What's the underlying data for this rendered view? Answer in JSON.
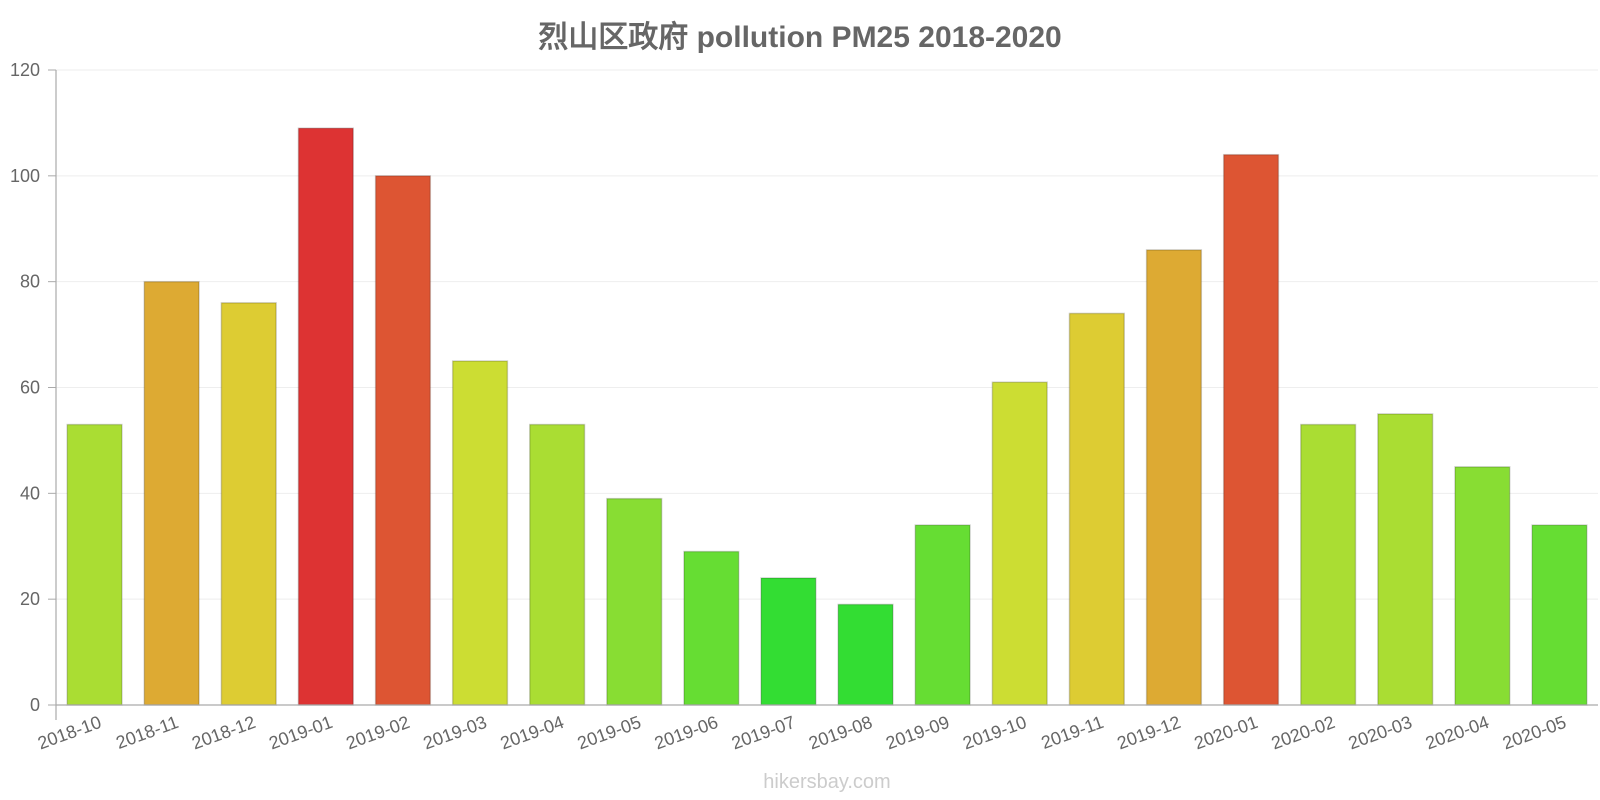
{
  "chart_data": {
    "type": "bar",
    "title": "烈山区政府 pollution PM25 2018-2020",
    "xlabel": "",
    "ylabel": "",
    "ylim": [
      0,
      120
    ],
    "yticks": [
      0,
      20,
      40,
      60,
      80,
      100,
      120
    ],
    "grid": true,
    "categories": [
      "2018-10",
      "2018-11",
      "2018-12",
      "2019-01",
      "2019-02",
      "2019-03",
      "2019-04",
      "2019-05",
      "2019-06",
      "2019-07",
      "2019-08",
      "2019-09",
      "2019-10",
      "2019-11",
      "2019-12",
      "2020-01",
      "2020-02",
      "2020-03",
      "2020-04",
      "2020-05"
    ],
    "values": [
      53,
      80,
      76,
      109,
      100,
      65,
      53,
      39,
      29,
      24,
      19,
      34,
      61,
      74,
      86,
      104,
      53,
      55,
      45,
      34
    ],
    "colors": [
      "#aadd33",
      "#ddaa33",
      "#ddcc33",
      "#dd3333",
      "#dd5533",
      "#ccdd33",
      "#aadd33",
      "#88dd33",
      "#66dd33",
      "#33dd33",
      "#33dd33",
      "#66dd33",
      "#ccdd33",
      "#ddcc33",
      "#ddaa33",
      "#dd5533",
      "#aadd33",
      "#aadd33",
      "#88dd33",
      "#66dd33"
    ]
  },
  "watermark": "hikersbay.com"
}
